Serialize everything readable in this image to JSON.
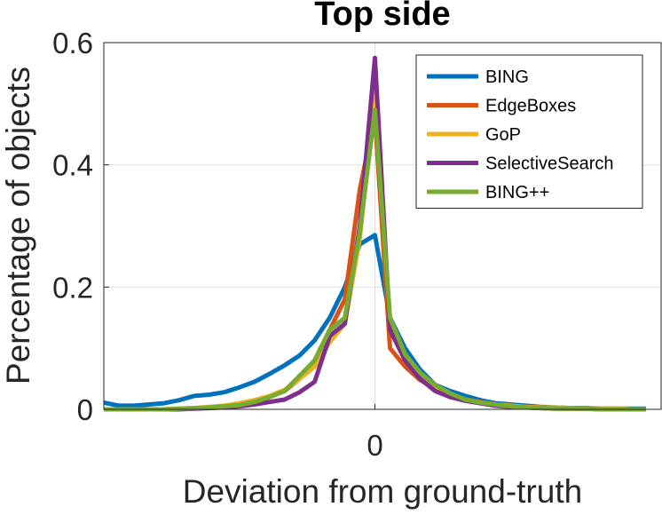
{
  "chart_data": {
    "type": "line",
    "title": "Top side",
    "xlabel": "Deviation from ground-truth",
    "ylabel": "Percentage of objects",
    "x_tick_labels": [
      {
        "x": 0,
        "label": "0"
      }
    ],
    "y_tick_labels": [
      {
        "y": 0,
        "label": "0"
      },
      {
        "y": 0.2,
        "label": "0.2"
      },
      {
        "y": 0.4,
        "label": "0.4"
      },
      {
        "y": 0.6,
        "label": "0.6"
      }
    ],
    "xlim": [
      -18,
      19
    ],
    "ylim": [
      0,
      0.6
    ],
    "grid": true,
    "legend_position": "top-right",
    "x": [
      -18,
      -17,
      -16,
      -15,
      -14,
      -13,
      -12,
      -11,
      -10,
      -9,
      -8,
      -7,
      -6,
      -5,
      -4,
      -3,
      -2,
      -1,
      0,
      1,
      2,
      3,
      4,
      5,
      6,
      7,
      8,
      9,
      10,
      11,
      12,
      13,
      14,
      15,
      16,
      17,
      18
    ],
    "series": [
      {
        "name": "BING",
        "color": "#0072BD",
        "values": [
          0.011,
          0.006,
          0.006,
          0.008,
          0.01,
          0.015,
          0.022,
          0.024,
          0.028,
          0.036,
          0.045,
          0.058,
          0.072,
          0.088,
          0.113,
          0.15,
          0.2,
          0.27,
          0.285,
          0.15,
          0.1,
          0.065,
          0.04,
          0.03,
          0.022,
          0.015,
          0.01,
          0.008,
          0.006,
          0.004,
          0.003,
          0.002,
          0.002,
          0.001,
          0.001,
          0.001,
          0.001
        ]
      },
      {
        "name": "EdgeBoxes",
        "color": "#D95319",
        "values": [
          0.0,
          0.0,
          0.0,
          0.0,
          0.0,
          0.001,
          0.002,
          0.003,
          0.005,
          0.008,
          0.012,
          0.02,
          0.03,
          0.05,
          0.08,
          0.13,
          0.18,
          0.36,
          0.48,
          0.1,
          0.07,
          0.048,
          0.035,
          0.022,
          0.016,
          0.012,
          0.008,
          0.005,
          0.004,
          0.003,
          0.002,
          0.001,
          0.001,
          0.001,
          0.001,
          0.0,
          0.0
        ]
      },
      {
        "name": "GoP",
        "color": "#EDB120",
        "values": [
          0.0,
          0.0,
          0.0,
          0.0,
          0.0,
          0.001,
          0.002,
          0.004,
          0.006,
          0.01,
          0.015,
          0.022,
          0.032,
          0.05,
          0.07,
          0.11,
          0.14,
          0.28,
          0.52,
          0.14,
          0.09,
          0.055,
          0.035,
          0.025,
          0.016,
          0.011,
          0.008,
          0.006,
          0.004,
          0.003,
          0.003,
          0.002,
          0.001,
          0.001,
          0.001,
          0.0,
          0.0
        ]
      },
      {
        "name": "SelectiveSearch",
        "color": "#7E2F8E",
        "values": [
          0.0,
          0.0,
          0.0,
          0.0,
          0.0,
          0.0,
          0.001,
          0.002,
          0.003,
          0.005,
          0.008,
          0.012,
          0.016,
          0.028,
          0.045,
          0.12,
          0.14,
          0.3,
          0.575,
          0.13,
          0.08,
          0.05,
          0.03,
          0.02,
          0.014,
          0.01,
          0.006,
          0.004,
          0.003,
          0.002,
          0.001,
          0.001,
          0.001,
          0.0,
          0.0,
          0.0,
          0.0
        ]
      },
      {
        "name": "BING++",
        "color": "#77AC30",
        "values": [
          0.0,
          0.0,
          0.0,
          0.0,
          0.0,
          0.001,
          0.002,
          0.003,
          0.005,
          0.007,
          0.012,
          0.02,
          0.03,
          0.055,
          0.08,
          0.13,
          0.15,
          0.29,
          0.49,
          0.15,
          0.09,
          0.06,
          0.04,
          0.026,
          0.016,
          0.011,
          0.008,
          0.005,
          0.003,
          0.002,
          0.001,
          0.001,
          0.001,
          0.0,
          0.0,
          0.0,
          0.0
        ]
      }
    ]
  }
}
